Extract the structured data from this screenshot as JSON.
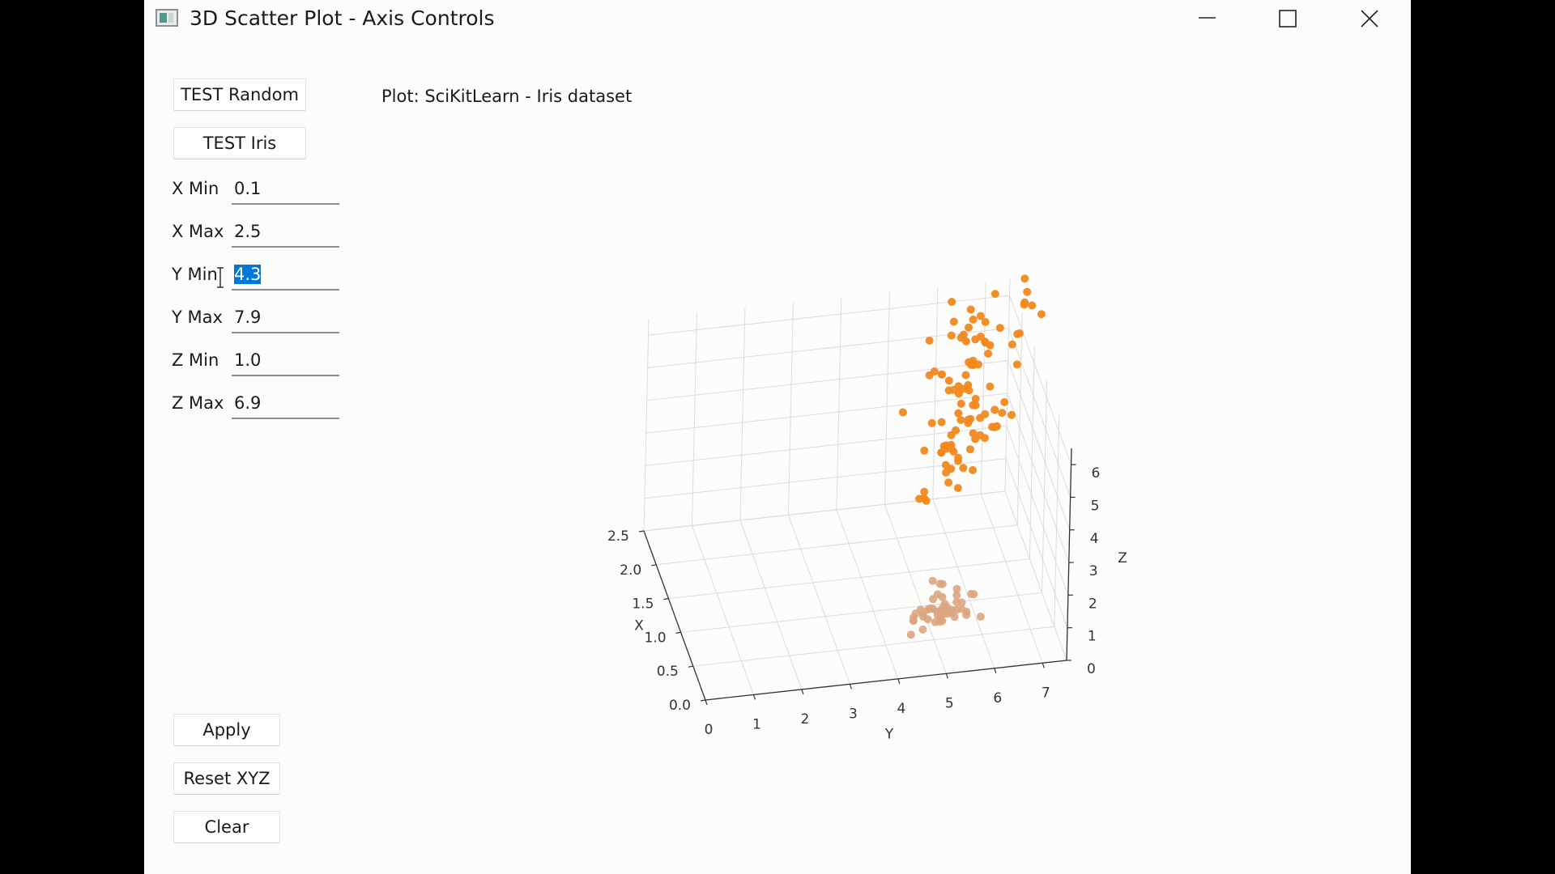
{
  "window": {
    "title": "3D Scatter Plot - Axis Controls",
    "icons": {
      "app": "app-window-icon",
      "minimize": "minimize-icon",
      "maximize": "maximize-icon",
      "close": "close-icon"
    }
  },
  "buttons": {
    "test_random": "TEST Random",
    "test_iris": "TEST Iris",
    "apply": "Apply",
    "reset": "Reset XYZ",
    "clear": "Clear"
  },
  "fields": [
    {
      "label": "X Min",
      "value": "0.1",
      "selected": false
    },
    {
      "label": "X Max",
      "value": "2.5",
      "selected": false
    },
    {
      "label": "Y Min",
      "value": "4.3",
      "selected": true
    },
    {
      "label": "Y Max",
      "value": "7.9",
      "selected": false
    },
    {
      "label": "Z Min",
      "value": "1.0",
      "selected": false
    },
    {
      "label": "Z Max",
      "value": "6.9",
      "selected": false
    }
  ],
  "plot": {
    "label": "Plot: SciKitLearn - Iris dataset"
  },
  "chart_data": {
    "type": "scatter",
    "title": "",
    "xlabel": "X",
    "ylabel": "Y",
    "zlabel": "Z",
    "x_ticks": [
      "0.0",
      "0.5",
      "1.0",
      "1.5",
      "2.0",
      "2.5"
    ],
    "y_ticks": [
      "0",
      "1",
      "2",
      "3",
      "4",
      "5",
      "6",
      "7"
    ],
    "z_ticks": [
      "0",
      "1",
      "2",
      "3",
      "4",
      "5",
      "6"
    ],
    "xlim": [
      0,
      2.5
    ],
    "ylim": [
      0,
      7.5
    ],
    "zlim": [
      0,
      6.5
    ],
    "grid": true,
    "marker_color": "#f0891f",
    "faded_marker_color": "#dca581",
    "series": [
      {
        "points": [
          [
            0.2,
            5.1,
            1.4
          ],
          [
            0.2,
            4.9,
            1.4
          ],
          [
            0.2,
            4.7,
            1.3
          ],
          [
            0.2,
            4.6,
            1.5
          ],
          [
            0.2,
            5.0,
            1.4
          ],
          [
            0.4,
            5.4,
            1.7
          ],
          [
            0.3,
            4.6,
            1.4
          ],
          [
            0.2,
            5.0,
            1.5
          ],
          [
            0.2,
            4.4,
            1.4
          ],
          [
            0.1,
            4.9,
            1.5
          ],
          [
            0.2,
            5.4,
            1.5
          ],
          [
            0.2,
            4.8,
            1.6
          ],
          [
            0.1,
            4.8,
            1.4
          ],
          [
            0.1,
            4.3,
            1.1
          ],
          [
            0.2,
            5.8,
            1.2
          ],
          [
            0.4,
            5.7,
            1.5
          ],
          [
            0.4,
            5.4,
            1.3
          ],
          [
            0.3,
            5.1,
            1.4
          ],
          [
            0.3,
            5.7,
            1.7
          ],
          [
            0.3,
            5.1,
            1.5
          ],
          [
            0.2,
            5.4,
            1.7
          ],
          [
            0.4,
            5.1,
            1.5
          ],
          [
            0.2,
            4.6,
            1.0
          ],
          [
            0.5,
            5.1,
            1.7
          ],
          [
            0.2,
            4.8,
            1.9
          ],
          [
            0.2,
            5.0,
            1.6
          ],
          [
            0.4,
            5.0,
            1.6
          ],
          [
            0.2,
            5.2,
            1.5
          ],
          [
            0.2,
            5.2,
            1.4
          ],
          [
            0.2,
            4.7,
            1.6
          ],
          [
            0.2,
            4.8,
            1.6
          ],
          [
            0.4,
            5.4,
            1.5
          ],
          [
            0.1,
            5.2,
            1.5
          ],
          [
            0.2,
            5.5,
            1.4
          ],
          [
            0.2,
            4.9,
            1.5
          ],
          [
            0.2,
            5.0,
            1.2
          ],
          [
            0.2,
            5.5,
            1.3
          ],
          [
            0.1,
            4.9,
            1.4
          ],
          [
            0.2,
            4.4,
            1.3
          ],
          [
            0.2,
            5.1,
            1.5
          ],
          [
            0.3,
            5.0,
            1.3
          ],
          [
            0.3,
            4.5,
            1.3
          ],
          [
            0.2,
            4.4,
            1.3
          ],
          [
            0.6,
            5.0,
            1.6
          ],
          [
            0.4,
            5.1,
            1.9
          ],
          [
            0.3,
            4.8,
            1.4
          ],
          [
            0.2,
            5.1,
            1.6
          ],
          [
            0.2,
            4.6,
            1.4
          ],
          [
            0.2,
            5.3,
            1.5
          ],
          [
            0.2,
            5.0,
            1.4
          ],
          [
            1.4,
            7.0,
            4.7
          ],
          [
            1.5,
            6.4,
            4.5
          ],
          [
            1.5,
            6.9,
            4.9
          ],
          [
            1.3,
            5.5,
            4.0
          ],
          [
            1.5,
            6.5,
            4.6
          ],
          [
            1.3,
            5.7,
            4.5
          ],
          [
            1.6,
            6.3,
            4.7
          ],
          [
            1.0,
            4.9,
            3.3
          ],
          [
            1.3,
            6.6,
            4.6
          ],
          [
            1.4,
            5.2,
            3.9
          ],
          [
            1.0,
            5.0,
            3.5
          ],
          [
            1.5,
            5.9,
            4.2
          ],
          [
            1.0,
            6.0,
            4.0
          ],
          [
            1.4,
            6.1,
            4.7
          ],
          [
            1.3,
            5.6,
            3.6
          ],
          [
            1.4,
            6.7,
            4.4
          ],
          [
            1.5,
            5.6,
            4.5
          ],
          [
            1.0,
            5.8,
            4.1
          ],
          [
            1.5,
            6.2,
            4.5
          ],
          [
            1.1,
            5.6,
            3.9
          ],
          [
            1.8,
            5.9,
            4.8
          ],
          [
            1.3,
            6.1,
            4.0
          ],
          [
            1.5,
            6.3,
            4.9
          ],
          [
            1.2,
            6.1,
            4.7
          ],
          [
            1.3,
            6.4,
            4.3
          ],
          [
            1.4,
            6.6,
            4.4
          ],
          [
            1.4,
            6.8,
            4.8
          ],
          [
            1.7,
            6.7,
            5.0
          ],
          [
            1.5,
            6.0,
            4.5
          ],
          [
            1.0,
            5.7,
            3.5
          ],
          [
            1.1,
            5.5,
            3.8
          ],
          [
            1.0,
            5.5,
            3.7
          ],
          [
            1.2,
            5.8,
            3.9
          ],
          [
            1.6,
            6.0,
            5.1
          ],
          [
            1.5,
            5.4,
            4.5
          ],
          [
            1.6,
            6.0,
            4.5
          ],
          [
            1.5,
            6.7,
            4.7
          ],
          [
            1.3,
            6.3,
            4.4
          ],
          [
            1.3,
            5.6,
            4.1
          ],
          [
            1.3,
            5.5,
            4.0
          ],
          [
            1.2,
            5.5,
            4.4
          ],
          [
            1.4,
            6.1,
            4.6
          ],
          [
            1.2,
            5.8,
            4.0
          ],
          [
            1.0,
            5.0,
            3.3
          ],
          [
            1.3,
            5.6,
            4.2
          ],
          [
            1.2,
            5.7,
            4.2
          ],
          [
            1.3,
            5.7,
            4.2
          ],
          [
            1.3,
            6.2,
            4.3
          ],
          [
            1.1,
            5.1,
            3.0
          ],
          [
            1.3,
            5.7,
            4.1
          ],
          [
            2.5,
            6.3,
            6.0
          ],
          [
            1.9,
            5.8,
            5.1
          ],
          [
            2.1,
            7.1,
            5.9
          ],
          [
            1.8,
            6.3,
            5.6
          ],
          [
            2.2,
            6.5,
            5.8
          ],
          [
            2.1,
            7.6,
            6.6
          ],
          [
            1.7,
            4.9,
            4.5
          ],
          [
            1.8,
            7.3,
            6.3
          ],
          [
            1.8,
            6.7,
            5.8
          ],
          [
            2.5,
            7.2,
            6.1
          ],
          [
            2.0,
            6.5,
            5.1
          ],
          [
            1.9,
            6.4,
            5.3
          ],
          [
            2.1,
            6.8,
            5.5
          ],
          [
            2.0,
            5.7,
            5.0
          ],
          [
            2.4,
            5.8,
            5.1
          ],
          [
            2.3,
            6.4,
            5.3
          ],
          [
            1.8,
            6.5,
            5.5
          ],
          [
            2.2,
            7.7,
            6.7
          ],
          [
            2.3,
            7.7,
            6.9
          ],
          [
            1.5,
            6.0,
            5.0
          ],
          [
            2.3,
            6.9,
            5.7
          ],
          [
            2.0,
            5.6,
            4.9
          ],
          [
            2.0,
            7.7,
            6.7
          ],
          [
            1.8,
            6.3,
            4.9
          ],
          [
            2.1,
            6.7,
            5.7
          ],
          [
            1.8,
            7.2,
            6.0
          ],
          [
            1.8,
            6.2,
            4.8
          ],
          [
            1.8,
            6.1,
            4.9
          ],
          [
            2.1,
            6.4,
            5.6
          ],
          [
            1.6,
            7.2,
            5.8
          ],
          [
            1.9,
            7.4,
            6.1
          ],
          [
            2.0,
            7.9,
            6.4
          ],
          [
            2.2,
            6.4,
            5.6
          ],
          [
            1.5,
            6.3,
            5.1
          ],
          [
            1.4,
            6.1,
            5.6
          ],
          [
            2.3,
            7.7,
            6.1
          ],
          [
            2.4,
            6.3,
            5.6
          ],
          [
            1.8,
            6.4,
            5.5
          ],
          [
            1.8,
            6.0,
            4.8
          ],
          [
            2.1,
            6.9,
            5.4
          ],
          [
            2.4,
            6.7,
            5.6
          ],
          [
            2.3,
            6.9,
            5.1
          ],
          [
            1.9,
            5.8,
            5.1
          ],
          [
            2.3,
            6.8,
            5.9
          ],
          [
            2.5,
            6.7,
            5.7
          ],
          [
            2.3,
            6.7,
            5.2
          ],
          [
            1.9,
            6.3,
            5.0
          ],
          [
            2.0,
            6.5,
            5.2
          ],
          [
            2.3,
            6.2,
            5.4
          ],
          [
            1.8,
            5.9,
            5.1
          ]
        ]
      }
    ]
  }
}
